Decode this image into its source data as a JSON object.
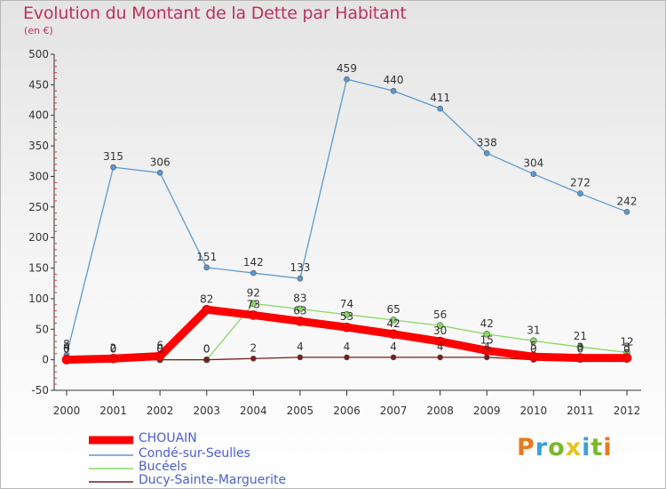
{
  "header": {
    "title": "Evolution du Montant de la Dette par Habitant",
    "subtitle": "(en €)"
  },
  "logo": {
    "text": "Proxiti",
    "colors": [
      "#e87a1e",
      "#3aa0d8",
      "#7ab82a",
      "#e8c21e",
      "#3aa0d8",
      "#7ab82a",
      "#e87a1e"
    ]
  },
  "chart_data": {
    "type": "line",
    "title": "Evolution du Montant de la Dette par Habitant",
    "subtitle": "(en €)",
    "xlabel": "",
    "ylabel": "",
    "x": [
      "2000",
      "2001",
      "2002",
      "2003",
      "2004",
      "2005",
      "2006",
      "2007",
      "2008",
      "2009",
      "2010",
      "2011",
      "2012"
    ],
    "ylim": [
      -50,
      500
    ],
    "yticks": [
      "-50",
      "0",
      "50",
      "100",
      "150",
      "200",
      "250",
      "300",
      "350",
      "400",
      "450",
      "500"
    ],
    "grid": false,
    "legend_position": "bottom-left",
    "series": [
      {
        "name": "CHOUAIN",
        "color": "#ff0000",
        "values": [
          0,
          2,
          6,
          82,
          73,
          63,
          53,
          42,
          30,
          15,
          5,
          3,
          3
        ],
        "labels": [
          "0",
          "2",
          "6",
          "82",
          "73",
          "63",
          "53",
          "42",
          "30",
          "15",
          "5",
          "3",
          "3"
        ]
      },
      {
        "name": "Condé-sur-Seulles",
        "color": "#5a9ad4",
        "values": [
          8,
          315,
          306,
          151,
          142,
          133,
          459,
          440,
          411,
          338,
          304,
          272,
          242
        ],
        "labels": [
          "8",
          "315",
          "306",
          "151",
          "142",
          "133",
          "459",
          "440",
          "411",
          "338",
          "304",
          "272",
          "242"
        ]
      },
      {
        "name": "Bucéels",
        "color": "#88d860",
        "values": [
          0,
          0,
          0,
          0,
          92,
          83,
          74,
          65,
          56,
          42,
          31,
          21,
          12
        ],
        "labels": [
          "0",
          "0",
          "0",
          "0",
          "92",
          "83",
          "74",
          "65",
          "56",
          "42",
          "31",
          "21",
          "12"
        ]
      },
      {
        "name": "Ducy-Sainte-Marguerite",
        "color": "#7a1c1c",
        "values": [
          4,
          0,
          0,
          0,
          2,
          4,
          4,
          4,
          4,
          4,
          0,
          0,
          0
        ],
        "labels": [
          "4",
          "0",
          "0",
          "0",
          "2",
          "4",
          "4",
          "4",
          "4",
          "4",
          "0",
          "0",
          "0"
        ]
      }
    ]
  }
}
